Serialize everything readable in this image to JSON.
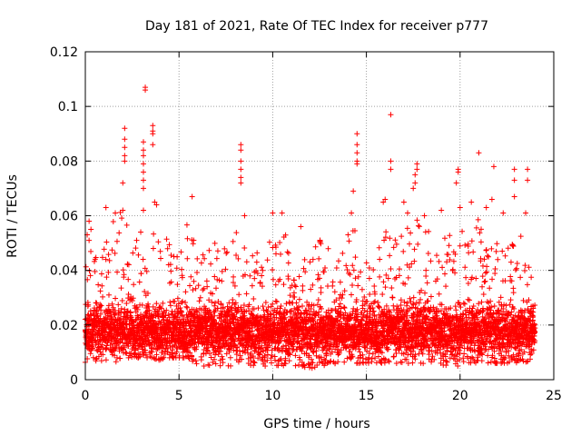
{
  "chart_data": {
    "type": "scatter",
    "title": "Day 181 of 2021, Rate Of TEC Index for receiver p777",
    "xlabel": "GPS time / hours",
    "ylabel": "ROTI / TECUs",
    "xlim": [
      0,
      25
    ],
    "ylim": [
      0,
      0.12
    ],
    "xticks": [
      0,
      5,
      10,
      15,
      20,
      25
    ],
    "yticks": [
      0,
      0.02,
      0.04,
      0.06,
      0.08,
      0.1,
      0.12
    ],
    "xtick_labels": [
      "0",
      "5",
      "10",
      "15",
      "20",
      "25"
    ],
    "ytick_labels": [
      "0",
      "0.02",
      "0.04",
      "0.06",
      "0.08",
      "0.1",
      "0.12"
    ],
    "grid": true,
    "marker": "+",
    "series": [
      {
        "name": "ROTI",
        "color": "#ff0000",
        "data_extent_hours": [
          0,
          24
        ],
        "points": [
          [
            3.2,
            0.107
          ],
          [
            3.2,
            0.106
          ],
          [
            16.3,
            0.097
          ],
          [
            21.0,
            0.083
          ],
          [
            2.1,
            0.092
          ],
          [
            2.1,
            0.088
          ],
          [
            2.1,
            0.085
          ],
          [
            2.1,
            0.082
          ],
          [
            2.1,
            0.08
          ],
          [
            3.1,
            0.087
          ],
          [
            3.1,
            0.084
          ],
          [
            3.1,
            0.082
          ],
          [
            3.1,
            0.079
          ],
          [
            3.1,
            0.076
          ],
          [
            3.1,
            0.073
          ],
          [
            3.1,
            0.07
          ],
          [
            3.6,
            0.093
          ],
          [
            3.6,
            0.091
          ],
          [
            3.6,
            0.09
          ],
          [
            3.6,
            0.086
          ],
          [
            8.3,
            0.086
          ],
          [
            8.3,
            0.084
          ],
          [
            8.3,
            0.08
          ],
          [
            8.3,
            0.077
          ],
          [
            8.3,
            0.074
          ],
          [
            8.3,
            0.072
          ],
          [
            14.5,
            0.09
          ],
          [
            14.5,
            0.086
          ],
          [
            14.5,
            0.083
          ],
          [
            14.5,
            0.08
          ],
          [
            14.5,
            0.079
          ],
          [
            14.3,
            0.069
          ],
          [
            16.3,
            0.08
          ],
          [
            16.3,
            0.077
          ],
          [
            17.7,
            0.079
          ],
          [
            17.7,
            0.077
          ],
          [
            17.6,
            0.075
          ],
          [
            17.6,
            0.072
          ],
          [
            17.5,
            0.07
          ],
          [
            19.9,
            0.077
          ],
          [
            19.9,
            0.076
          ],
          [
            19.8,
            0.072
          ],
          [
            21.8,
            0.078
          ],
          [
            22.9,
            0.077
          ],
          [
            23.6,
            0.077
          ],
          [
            23.6,
            0.073
          ],
          [
            22.9,
            0.073
          ],
          [
            22.9,
            0.067
          ],
          [
            5.7,
            0.067
          ],
          [
            2.0,
            0.072
          ],
          [
            3.1,
            0.062
          ],
          [
            3.7,
            0.065
          ],
          [
            3.8,
            0.064
          ],
          [
            1.6,
            0.061
          ],
          [
            2.0,
            0.062
          ],
          [
            1.1,
            0.063
          ],
          [
            8.5,
            0.06
          ],
          [
            10.5,
            0.061
          ],
          [
            10.0,
            0.061
          ],
          [
            11.5,
            0.056
          ],
          [
            14.2,
            0.061
          ],
          [
            15.9,
            0.065
          ],
          [
            16.0,
            0.066
          ],
          [
            17.0,
            0.065
          ],
          [
            17.2,
            0.061
          ],
          [
            18.1,
            0.06
          ],
          [
            19.0,
            0.062
          ],
          [
            20.0,
            0.063
          ],
          [
            20.6,
            0.065
          ],
          [
            21.4,
            0.063
          ],
          [
            21.7,
            0.066
          ],
          [
            22.3,
            0.061
          ],
          [
            23.5,
            0.061
          ],
          [
            0.2,
            0.058
          ],
          [
            0.3,
            0.055
          ],
          [
            0.2,
            0.051
          ],
          [
            0.1,
            0.053
          ]
        ],
        "dense_band_profile": [
          [
            0.0,
            0.006,
            0.046
          ],
          [
            0.5,
            0.007,
            0.052
          ],
          [
            1.0,
            0.006,
            0.05
          ],
          [
            1.5,
            0.006,
            0.06
          ],
          [
            2.0,
            0.008,
            0.062
          ],
          [
            2.5,
            0.008,
            0.05
          ],
          [
            3.0,
            0.008,
            0.06
          ],
          [
            3.5,
            0.008,
            0.062
          ],
          [
            4.0,
            0.007,
            0.058
          ],
          [
            4.5,
            0.008,
            0.05
          ],
          [
            5.0,
            0.008,
            0.055
          ],
          [
            5.5,
            0.008,
            0.06
          ],
          [
            6.0,
            0.005,
            0.045
          ],
          [
            6.5,
            0.005,
            0.048
          ],
          [
            7.0,
            0.005,
            0.052
          ],
          [
            7.5,
            0.005,
            0.048
          ],
          [
            8.0,
            0.005,
            0.055
          ],
          [
            8.5,
            0.005,
            0.06
          ],
          [
            9.0,
            0.005,
            0.048
          ],
          [
            9.5,
            0.005,
            0.05
          ],
          [
            10.0,
            0.005,
            0.058
          ],
          [
            10.5,
            0.005,
            0.058
          ],
          [
            11.0,
            0.005,
            0.048
          ],
          [
            11.5,
            0.005,
            0.045
          ],
          [
            12.0,
            0.004,
            0.045
          ],
          [
            12.5,
            0.005,
            0.052
          ],
          [
            13.0,
            0.005,
            0.05
          ],
          [
            13.5,
            0.006,
            0.048
          ],
          [
            14.0,
            0.006,
            0.058
          ],
          [
            14.5,
            0.006,
            0.058
          ],
          [
            15.0,
            0.006,
            0.05
          ],
          [
            15.5,
            0.006,
            0.048
          ],
          [
            16.0,
            0.006,
            0.055
          ],
          [
            16.5,
            0.006,
            0.052
          ],
          [
            17.0,
            0.006,
            0.055
          ],
          [
            17.5,
            0.006,
            0.06
          ],
          [
            18.0,
            0.006,
            0.058
          ],
          [
            18.5,
            0.005,
            0.055
          ],
          [
            19.0,
            0.005,
            0.058
          ],
          [
            19.5,
            0.005,
            0.055
          ],
          [
            20.0,
            0.005,
            0.06
          ],
          [
            20.5,
            0.006,
            0.058
          ],
          [
            21.0,
            0.006,
            0.06
          ],
          [
            21.5,
            0.006,
            0.062
          ],
          [
            22.0,
            0.006,
            0.05
          ],
          [
            22.5,
            0.006,
            0.048
          ],
          [
            23.0,
            0.006,
            0.052
          ],
          [
            23.5,
            0.006,
            0.058
          ],
          [
            24.0,
            0.008,
            0.03
          ]
        ],
        "band_center": 0.018
      }
    ]
  }
}
